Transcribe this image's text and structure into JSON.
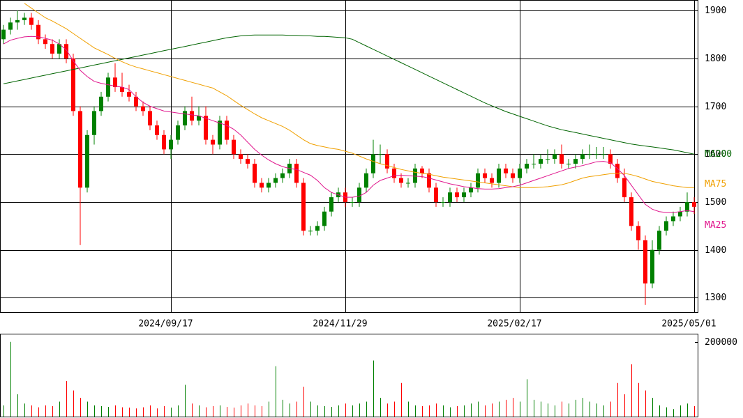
{
  "chart_data": [
    {
      "type": "candlestick",
      "xlim": [
        -0.5,
        99.5
      ],
      "xticks": [
        {
          "value": 24,
          "label": "2024/09/17"
        },
        {
          "value": 49,
          "label": "2024/11/29"
        },
        {
          "value": 74,
          "label": "2025/02/17"
        },
        {
          "value": 99,
          "label": "2025/05/01"
        }
      ],
      "ylim": [
        1270,
        1922
      ],
      "yticks": [
        1300,
        1400,
        1500,
        1600,
        1700,
        1800,
        1900
      ],
      "grid": true,
      "up_color": "#008000",
      "down_color": "#ff0000",
      "open": [
        1840,
        1860,
        1875,
        1880,
        1885,
        1870,
        1840,
        1830,
        1810,
        1830,
        1800,
        1690,
        1530,
        1640,
        1690,
        1720,
        1760,
        1740,
        1730,
        1720,
        1700,
        1690,
        1660,
        1640,
        1610,
        1630,
        1660,
        1690,
        1670,
        1680,
        1630,
        1620,
        1670,
        1630,
        1600,
        1590,
        1580,
        1540,
        1530,
        1540,
        1550,
        1560,
        1580,
        1540,
        1440,
        1440,
        1450,
        1480,
        1510,
        1520,
        1500,
        1500,
        1530,
        1560,
        1600,
        1600,
        1570,
        1550,
        1540,
        1540,
        1570,
        1560,
        1530,
        1500,
        1500,
        1520,
        1510,
        1520,
        1530,
        1560,
        1550,
        1540,
        1570,
        1560,
        1550,
        1570,
        1580,
        1580,
        1590,
        1590,
        1600,
        1580,
        1580,
        1590,
        1600,
        1600,
        1600,
        1600,
        1580,
        1550,
        1510,
        1450,
        1420,
        1330,
        1400,
        1440,
        1460,
        1470,
        1480,
        1500
      ],
      "high": [
        1870,
        1885,
        1900,
        1895,
        1895,
        1880,
        1850,
        1840,
        1840,
        1840,
        1810,
        1700,
        1650,
        1700,
        1730,
        1770,
        1790,
        1770,
        1745,
        1730,
        1710,
        1700,
        1670,
        1650,
        1640,
        1670,
        1700,
        1720,
        1700,
        1700,
        1640,
        1680,
        1680,
        1640,
        1610,
        1600,
        1590,
        1550,
        1550,
        1560,
        1570,
        1590,
        1590,
        1550,
        1450,
        1460,
        1490,
        1520,
        1530,
        1530,
        1510,
        1540,
        1570,
        1630,
        1620,
        1610,
        1580,
        1560,
        1550,
        1580,
        1575,
        1570,
        1540,
        1510,
        1530,
        1530,
        1530,
        1540,
        1570,
        1570,
        1560,
        1580,
        1580,
        1570,
        1580,
        1590,
        1600,
        1600,
        1610,
        1610,
        1620,
        1590,
        1600,
        1610,
        1620,
        1615,
        1615,
        1610,
        1590,
        1570,
        1520,
        1460,
        1430,
        1420,
        1450,
        1470,
        1480,
        1490,
        1520,
        1510
      ],
      "low": [
        1830,
        1850,
        1860,
        1870,
        1860,
        1830,
        1820,
        1800,
        1800,
        1790,
        1680,
        1410,
        1520,
        1620,
        1680,
        1710,
        1730,
        1720,
        1710,
        1690,
        1680,
        1650,
        1630,
        1600,
        1590,
        1620,
        1650,
        1660,
        1660,
        1620,
        1600,
        1610,
        1620,
        1590,
        1580,
        1570,
        1530,
        1520,
        1520,
        1530,
        1540,
        1550,
        1530,
        1430,
        1430,
        1430,
        1440,
        1470,
        1500,
        1490,
        1490,
        1490,
        1520,
        1550,
        1580,
        1560,
        1540,
        1530,
        1530,
        1530,
        1550,
        1520,
        1490,
        1490,
        1490,
        1500,
        1500,
        1510,
        1520,
        1540,
        1530,
        1530,
        1550,
        1540,
        1540,
        1560,
        1570,
        1570,
        1580,
        1580,
        1570,
        1570,
        1570,
        1580,
        1590,
        1590,
        1590,
        1570,
        1540,
        1500,
        1440,
        1400,
        1285,
        1320,
        1390,
        1430,
        1450,
        1460,
        1470,
        1475
      ],
      "close": [
        1860,
        1875,
        1880,
        1885,
        1870,
        1840,
        1830,
        1810,
        1830,
        1800,
        1690,
        1530,
        1640,
        1690,
        1720,
        1760,
        1740,
        1730,
        1720,
        1700,
        1690,
        1660,
        1640,
        1610,
        1630,
        1660,
        1690,
        1670,
        1680,
        1630,
        1620,
        1670,
        1630,
        1600,
        1590,
        1580,
        1540,
        1530,
        1540,
        1550,
        1560,
        1580,
        1540,
        1440,
        1440,
        1450,
        1480,
        1510,
        1520,
        1500,
        1500,
        1530,
        1560,
        1600,
        1600,
        1570,
        1550,
        1540,
        1540,
        1570,
        1560,
        1530,
        1500,
        1500,
        1520,
        1510,
        1520,
        1530,
        1560,
        1550,
        1540,
        1570,
        1560,
        1550,
        1570,
        1580,
        1580,
        1590,
        1590,
        1600,
        1580,
        1580,
        1590,
        1600,
        1600,
        1600,
        1600,
        1580,
        1550,
        1510,
        1450,
        1420,
        1330,
        1400,
        1440,
        1460,
        1470,
        1480,
        1500,
        1490
      ],
      "lines": [
        {
          "name": "MA200",
          "color": "#006400",
          "values": [
            1747,
            1750,
            1753,
            1756,
            1759,
            1762,
            1765,
            1768,
            1771,
            1774,
            1777,
            1780,
            1783,
            1786,
            1789,
            1792,
            1795,
            1798,
            1801,
            1804,
            1807,
            1810,
            1813,
            1816,
            1819,
            1822,
            1825,
            1828,
            1831,
            1834,
            1837,
            1840,
            1843,
            1845,
            1847,
            1848,
            1849,
            1849,
            1849,
            1849,
            1849,
            1848,
            1848,
            1847,
            1847,
            1846,
            1846,
            1845,
            1844,
            1843,
            1840,
            1833,
            1826,
            1819,
            1812,
            1805,
            1798,
            1791,
            1784,
            1777,
            1770,
            1763,
            1756,
            1749,
            1742,
            1735,
            1728,
            1721,
            1714,
            1707,
            1701,
            1695,
            1689,
            1684,
            1679,
            1674,
            1669,
            1664,
            1659,
            1655,
            1651,
            1648,
            1645,
            1642,
            1639,
            1636,
            1633,
            1630,
            1627,
            1624,
            1621,
            1619,
            1617,
            1615,
            1613,
            1611,
            1609,
            1606,
            1603,
            1600
          ]
        },
        {
          "name": "MA75",
          "color": "#f0a000",
          "values": [
            null,
            null,
            null,
            1915,
            1905,
            1895,
            1885,
            1878,
            1870,
            1862,
            1852,
            1842,
            1832,
            1822,
            1815,
            1808,
            1800,
            1793,
            1787,
            1782,
            1778,
            1774,
            1770,
            1766,
            1762,
            1758,
            1754,
            1750,
            1746,
            1742,
            1738,
            1730,
            1722,
            1712,
            1702,
            1693,
            1684,
            1676,
            1670,
            1664,
            1658,
            1650,
            1640,
            1630,
            1622,
            1618,
            1615,
            1612,
            1610,
            1606,
            1602,
            1596,
            1590,
            1585,
            1580,
            1576,
            1572,
            1568,
            1565,
            1562,
            1560,
            1558,
            1555,
            1552,
            1550,
            1548,
            1546,
            1544,
            1542,
            1540,
            1538,
            1536,
            1534,
            1532,
            1530,
            1530,
            1530,
            1531,
            1532,
            1534,
            1536,
            1540,
            1545,
            1550,
            1553,
            1555,
            1557,
            1559,
            1560,
            1560,
            1557,
            1553,
            1548,
            1543,
            1540,
            1537,
            1534,
            1532,
            1530,
            1530
          ]
        },
        {
          "name": "MA25",
          "color": "#e0148c",
          "values": [
            1830,
            1838,
            1842,
            1845,
            1846,
            1845,
            1842,
            1838,
            1830,
            1818,
            1795,
            1775,
            1762,
            1752,
            1748,
            1745,
            1742,
            1740,
            1735,
            1720,
            1708,
            1700,
            1695,
            1690,
            1688,
            1686,
            1684,
            1682,
            1680,
            1675,
            1670,
            1665,
            1660,
            1652,
            1640,
            1625,
            1610,
            1598,
            1588,
            1580,
            1574,
            1570,
            1568,
            1562,
            1556,
            1545,
            1530,
            1520,
            1515,
            1510,
            1510,
            1512,
            1520,
            1535,
            1545,
            1550,
            1555,
            1556,
            1555,
            1554,
            1553,
            1550,
            1546,
            1542,
            1538,
            1535,
            1532,
            1530,
            1528,
            1527,
            1527,
            1528,
            1530,
            1532,
            1535,
            1540,
            1545,
            1550,
            1555,
            1560,
            1565,
            1570,
            1573,
            1576,
            1580,
            1584,
            1585,
            1582,
            1570,
            1555,
            1535,
            1515,
            1495,
            1485,
            1480,
            1478,
            1478,
            1480,
            1482,
            1480
          ]
        }
      ]
    },
    {
      "type": "bar",
      "xlim": [
        -0.5,
        99.5
      ],
      "ylim": [
        0,
        220000
      ],
      "yticks": [
        200000
      ],
      "values": [
        30000,
        200000,
        60000,
        35000,
        30000,
        25000,
        30000,
        28000,
        40000,
        95000,
        70000,
        50000,
        40000,
        30000,
        28000,
        26000,
        30000,
        25000,
        24000,
        22000,
        25000,
        30000,
        22000,
        28000,
        24000,
        30000,
        85000,
        35000,
        30000,
        25000,
        28000,
        30000,
        26000,
        24000,
        30000,
        35000,
        30000,
        28000,
        40000,
        135000,
        45000,
        35000,
        40000,
        80000,
        40000,
        30000,
        28000,
        26000,
        30000,
        35000,
        30000,
        35000,
        40000,
        150000,
        50000,
        35000,
        40000,
        90000,
        40000,
        30000,
        28000,
        30000,
        35000,
        30000,
        25000,
        28000,
        30000,
        35000,
        40000,
        30000,
        35000,
        40000,
        45000,
        50000,
        40000,
        100000,
        45000,
        40000,
        35000,
        30000,
        40000,
        35000,
        45000,
        50000,
        40000,
        35000,
        30000,
        40000,
        90000,
        60000,
        140000,
        90000,
        70000,
        50000,
        30000,
        25000,
        20000,
        30000,
        35000,
        28000
      ]
    }
  ]
}
